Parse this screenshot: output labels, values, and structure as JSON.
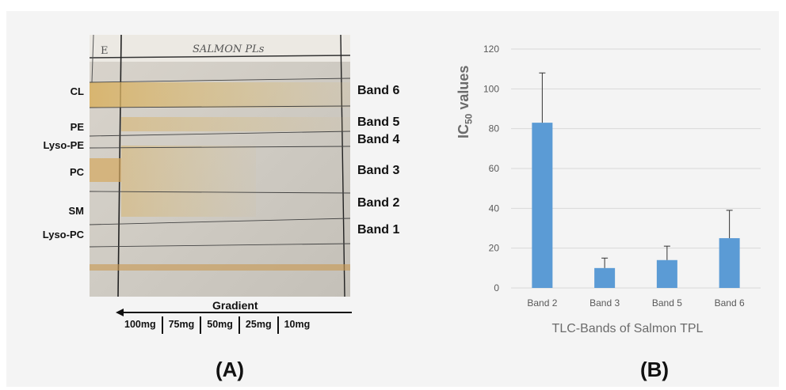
{
  "panel_a": {
    "sheet_title": "SALMON PLs",
    "corner_mark": "E",
    "lipids": [
      "CL",
      "PE",
      "Lyso-PE",
      "PC",
      "SM",
      "Lyso-PC"
    ],
    "bands": [
      "Band 6",
      "Band 5",
      "Band 4",
      "Band 3",
      "Band 2",
      "Band 1"
    ],
    "gradient_label": "Gradient",
    "amounts": [
      "100mg",
      "75mg",
      "50mg",
      "25mg",
      "10mg"
    ],
    "letter": "(A)"
  },
  "panel_b": {
    "letter": "(B)"
  },
  "chart_data": {
    "type": "bar",
    "categories": [
      "Band 2",
      "Band 3",
      "Band 5",
      "Band 6"
    ],
    "values": [
      83,
      10,
      14,
      25
    ],
    "error_upper": [
      108,
      15,
      21,
      39
    ],
    "title": "",
    "xlabel": "TLC-Bands of Salmon TPL",
    "ylabel_main": "IC",
    "ylabel_sub": "50",
    "ylabel_rest": " values",
    "ylim": [
      0,
      120
    ],
    "yticks": [
      0,
      20,
      40,
      60,
      80,
      100,
      120
    ],
    "grid": true,
    "bar_color": "#5b9bd5"
  }
}
